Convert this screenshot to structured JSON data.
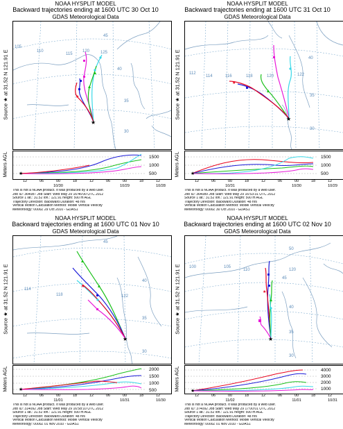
{
  "panels": [
    {
      "t1": "NOAA HYSPLIT MODEL",
      "t2": "Backward trajectories ending at 1600 UTC 30 Oct 10",
      "t3": "GDAS Meteorological Data",
      "side": "Source ★ at  31.52 N  121.91 E",
      "agl": "Meters AGL",
      "alt": [
        "1500",
        "1000",
        "500"
      ],
      "alt_left": "500",
      "ticks": [
        "12",
        "06",
        "00",
        "18",
        "12",
        "06",
        "00",
        "18",
        "12"
      ],
      "dates": [
        "10/30",
        "10/29",
        "10/28"
      ],
      "grid": [
        "105",
        "110",
        "115",
        "120",
        "125",
        "45",
        "40",
        "35",
        "30"
      ],
      "meta": [
        "This is not a NOAA product. It was produced by a web user.",
        "Job ID: 364087          Job Start: Wed May 29 16:46:00 UTC 2012",
        "Source 1     lat.: 31.52   lon.: 121.91   height: 500 m AGL",
        "Trajectory Direction: Backward     Duration: 48 hrs",
        "Vertical Motion Calculation Method:     Model Vertical Velocity",
        "Meteorology: 0000Z 29 Oct 2010 - GDAS1"
      ]
    },
    {
      "t1": "NOAA HYSPLIT MODEL",
      "t2": "Backward trajectories ending at 1600 UTC 31 Oct 10",
      "t3": "GDAS Meteorological Data",
      "side": "Source ★ at  31.52 N  121.91 E",
      "agl": "Meters AGL",
      "alt": [
        "1500",
        "1000",
        "500"
      ],
      "alt_left": "500",
      "ticks": [
        "12",
        "06",
        "00",
        "18",
        "12",
        "06",
        "00",
        "18",
        "12"
      ],
      "dates": [
        "10/31",
        "10/30",
        "10/29"
      ],
      "grid": [
        "112",
        "114",
        "116",
        "118",
        "120",
        "122",
        "40",
        "35",
        "30"
      ],
      "meta": [
        "This is not a NOAA product. It was produced by a web user.",
        "Job ID: 364089          Job Start: Wed May 29 16:53:31 UTC 2012",
        "Source 1     lat.: 31.52   lon.: 121.91   height: 500 m AGL",
        "Trajectory Direction: Backward     Duration: 48 hrs",
        "Vertical Motion Calculation Method:     Model Vertical Velocity",
        "Meteorology: 0000Z 30 Oct 2010 - GDAS1"
      ]
    },
    {
      "t1": "NOAA HYSPLIT MODEL",
      "t2": "Backward trajectories ending at 1600 UTC 01 Nov 10",
      "t3": "GDAS Meteorological Data",
      "side": "Source ★ at  31.52 N  121.91 E",
      "agl": "Meters AGL",
      "alt": [
        "2000",
        "1500",
        "1000",
        "500"
      ],
      "alt_left": "500",
      "ticks": [
        "12",
        "06",
        "00",
        "18",
        "12",
        "06",
        "00",
        "18",
        "12"
      ],
      "dates": [
        "11/01",
        "10/31",
        "10/30"
      ],
      "grid": [
        "114",
        "118",
        "122",
        "45",
        "40",
        "35",
        "30"
      ],
      "meta": [
        "This is not a NOAA product. It was produced by a web user.",
        "Job ID: 314092          Job Start: Wed May 29 16:58:10 UTC 2012",
        "Source 1     lat.: 31.52   lon.: 121.91   height: 500 m AGL",
        "Trajectory Direction: Backward     Duration: 48 hrs",
        "Vertical Motion Calculation Method:     Model Vertical Velocity",
        "Meteorology: 0000Z 01 Nov 2010 - GDAS1"
      ]
    },
    {
      "t1": "NOAA HYSPLIT MODEL",
      "t2": "Backward trajectories ending at 1600 UTC 02 Nov 10",
      "t3": "GDAS Meteorological Data",
      "side": "Source ★ at  31.52 N  121.91 E",
      "agl": "Meters AGL",
      "alt": [
        "4000",
        "3000",
        "2000",
        "1000"
      ],
      "alt_left": "500",
      "ticks": [
        "12",
        "06",
        "00",
        "18",
        "12",
        "06",
        "00",
        "18",
        "12"
      ],
      "dates": [
        "11/02",
        "11/01",
        "10/31"
      ],
      "grid": [
        "100",
        "105",
        "110",
        "120",
        "50",
        "45",
        "40",
        "35",
        "30"
      ],
      "meta": [
        "This is not a NOAA product. It was produced by a web user.",
        "Job ID: 374092          Job Start: Wed May 29 17:00:01 UTC 2012",
        "Source 1     lat.: 31.52   lon.: 121.91   height: 500 m AGL",
        "Trajectory Direction: Backward     Duration: 48 hrs",
        "Vertical Motion Calculation Method:     Model Vertical Velocity",
        "Meteorology: 0000Z 01 Nov 2010 - GDAS1"
      ]
    }
  ],
  "colors": {
    "red": "#e8001c",
    "blue": "#1a1ad8",
    "green": "#18c018",
    "cyan": "#38d8e8",
    "magenta": "#e818d8",
    "black": "#202020",
    "grid": "#6a9fc8",
    "coast": "#7a9ec0"
  }
}
